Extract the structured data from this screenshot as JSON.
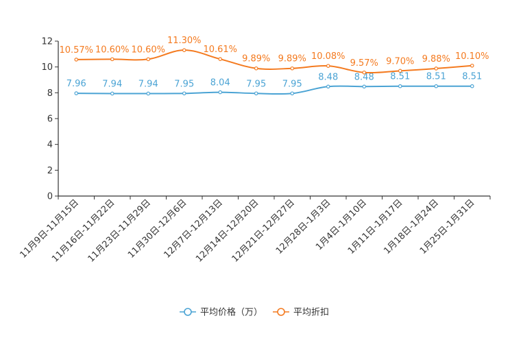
{
  "chart_data": {
    "type": "line",
    "categories": [
      "11月9日-11月15日",
      "11月16日-11月22日",
      "11月23日-11月29日",
      "11月30日-12月6日",
      "12月7日-12月13日",
      "12月14日-12月20日",
      "12月21日-12月27日",
      "12月28日-1月3日",
      "1月4日-1月10日",
      "1月11日-1月17日",
      "1月18日-1月24日",
      "1月25日-1月31日"
    ],
    "series": [
      {
        "name": "平均价格（万）",
        "color": "#4aa3d4",
        "values": [
          7.96,
          7.94,
          7.94,
          7.95,
          8.04,
          7.95,
          7.95,
          8.48,
          8.48,
          8.51,
          8.51,
          8.51
        ],
        "labels": [
          "7.96",
          "7.94",
          "7.94",
          "7.95",
          "8.04",
          "7.95",
          "7.95",
          "8.48",
          "8.48",
          "8.51",
          "8.51",
          "8.51"
        ]
      },
      {
        "name": "平均折扣",
        "color": "#f47a1f",
        "values": [
          10.57,
          10.6,
          10.6,
          11.3,
          10.61,
          9.89,
          9.89,
          10.08,
          9.57,
          9.7,
          9.88,
          10.1
        ],
        "labels": [
          "10.57%",
          "10.60%",
          "10.60%",
          "11.30%",
          "10.61%",
          "9.89%",
          "9.89%",
          "10.08%",
          "9.57%",
          "9.70%",
          "9.88%",
          "10.10%"
        ]
      }
    ],
    "yticks": [
      "0",
      "2",
      "4",
      "6",
      "8",
      "10",
      "12"
    ],
    "ylim": [
      0,
      12
    ],
    "legend_position": "bottom-center",
    "axis_color": "#333333"
  }
}
